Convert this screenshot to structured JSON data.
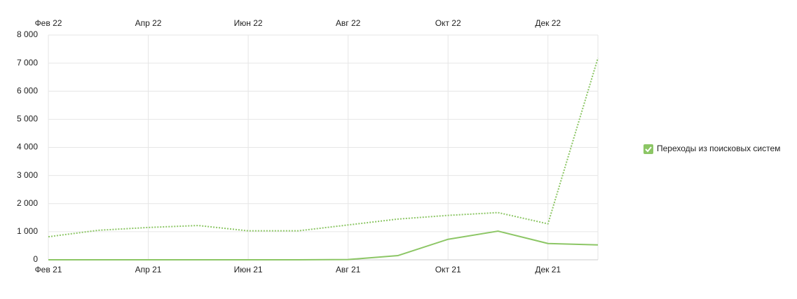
{
  "chart_data": {
    "type": "line",
    "categories": [
      "Фев 21",
      null,
      "Апр 21",
      null,
      "Июн 21",
      null,
      "Авг 21",
      null,
      "Окт 21",
      null,
      "Дек 21",
      null
    ],
    "x2_categories": [
      "Фев 22",
      null,
      "Апр 22",
      null,
      "Июн 22",
      null,
      "Авг 22",
      null,
      "Окт 22",
      null,
      "Дек 22",
      null
    ],
    "series": [
      {
        "name": "Переходы из поисковых систем",
        "color": "#8cc665",
        "dash": "solid",
        "values": [
          0,
          0,
          0,
          0,
          0,
          0,
          10,
          150,
          730,
          1020,
          580,
          530
        ]
      },
      {
        "color": "#8cc665",
        "dash": "dotted",
        "axis": "x2",
        "values": [
          820,
          1050,
          1150,
          1220,
          1030,
          1030,
          1240,
          1450,
          1580,
          1680,
          1280,
          7180
        ]
      }
    ],
    "ylim": [
      0,
      8000
    ],
    "yticks": [
      0,
      {
        "value": 1000,
        "label": "1 000"
      },
      {
        "value": 2000,
        "label": "2 000"
      },
      {
        "value": 3000,
        "label": "3 000"
      },
      {
        "value": 4000,
        "label": "4 000"
      },
      {
        "value": 5000,
        "label": "5 000"
      },
      {
        "value": 6000,
        "label": "6 000"
      },
      {
        "value": 7000,
        "label": "7 000"
      },
      {
        "value": 8000,
        "label": "8 000"
      }
    ],
    "grid": true
  }
}
